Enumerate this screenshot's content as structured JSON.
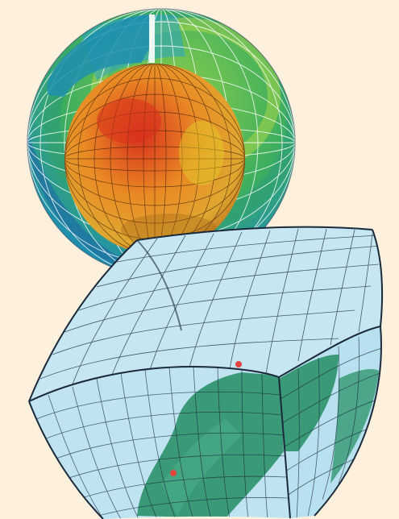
{
  "background_color": "#fdf0dc",
  "colors": {
    "shell_outer": "#1f8f63",
    "shell_mid": "#6fbf4e",
    "shell_inner": "#1f8fae",
    "cut_face_deep": "#2aa3c8",
    "core_hot": "#d8321c",
    "core_mid": "#e98a24",
    "core_cool": "#d6d62a",
    "mesh_line": "#ffffff",
    "block_face": "#bfe3f1",
    "block_line": "#1b2a3a",
    "land": "#3a9a78",
    "marker": "#e2433c"
  },
  "icons": [
    "globe-mesh-icon",
    "curved-grid-block-icon",
    "location-marker-icon"
  ]
}
